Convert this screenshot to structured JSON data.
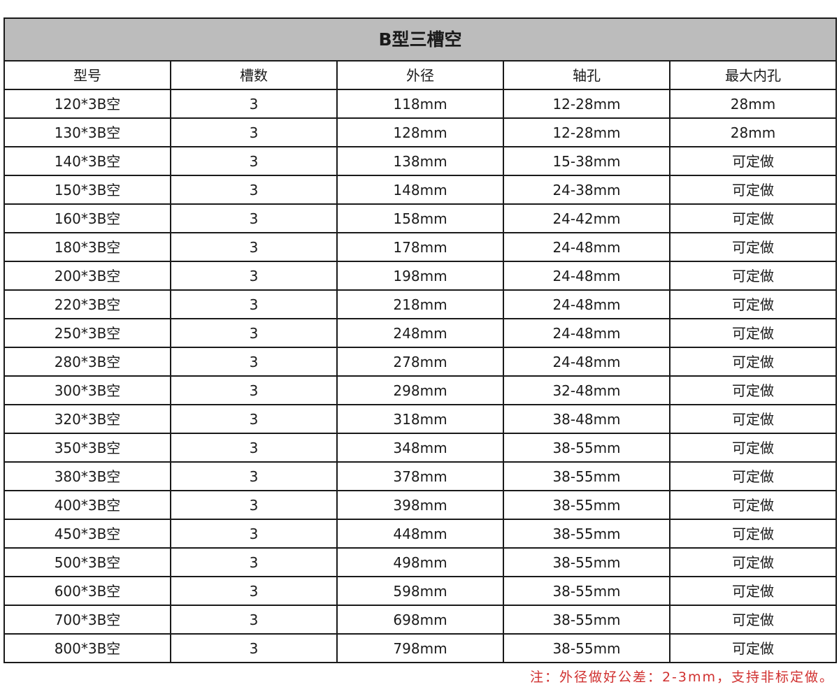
{
  "title": "B型三槽空",
  "headers": [
    "型号",
    "槽数",
    "外径",
    "轴孔",
    "最大内孔"
  ],
  "rows": [
    [
      "120*3B空",
      "3",
      "118mm",
      "12-28mm",
      "28mm"
    ],
    [
      "130*3B空",
      "3",
      "128mm",
      "12-28mm",
      "28mm"
    ],
    [
      "140*3B空",
      "3",
      "138mm",
      "15-38mm",
      "可定做"
    ],
    [
      "150*3B空",
      "3",
      "148mm",
      "24-38mm",
      "可定做"
    ],
    [
      "160*3B空",
      "3",
      "158mm",
      "24-42mm",
      "可定做"
    ],
    [
      "180*3B空",
      "3",
      "178mm",
      "24-48mm",
      "可定做"
    ],
    [
      "200*3B空",
      "3",
      "198mm",
      "24-48mm",
      "可定做"
    ],
    [
      "220*3B空",
      "3",
      "218mm",
      "24-48mm",
      "可定做"
    ],
    [
      "250*3B空",
      "3",
      "248mm",
      "24-48mm",
      "可定做"
    ],
    [
      "280*3B空",
      "3",
      "278mm",
      "24-48mm",
      "可定做"
    ],
    [
      "300*3B空",
      "3",
      "298mm",
      "32-48mm",
      "可定做"
    ],
    [
      "320*3B空",
      "3",
      "318mm",
      "38-48mm",
      "可定做"
    ],
    [
      "350*3B空",
      "3",
      "348mm",
      "38-55mm",
      "可定做"
    ],
    [
      "380*3B空",
      "3",
      "378mm",
      "38-55mm",
      "可定做"
    ],
    [
      "400*3B空",
      "3",
      "398mm",
      "38-55mm",
      "可定做"
    ],
    [
      "450*3B空",
      "3",
      "448mm",
      "38-55mm",
      "可定做"
    ],
    [
      "500*3B空",
      "3",
      "498mm",
      "38-55mm",
      "可定做"
    ],
    [
      "600*3B空",
      "3",
      "598mm",
      "38-55mm",
      "可定做"
    ],
    [
      "700*3B空",
      "3",
      "698mm",
      "38-55mm",
      "可定做"
    ],
    [
      "800*3B空",
      "3",
      "798mm",
      "38-55mm",
      "可定做"
    ]
  ],
  "note": "注：外径做好公差：2-3mm，支持非标定做。",
  "colors": {
    "title_bg": "#bcbcbc",
    "note": "#d0302f",
    "border": "#1a1a1a"
  }
}
